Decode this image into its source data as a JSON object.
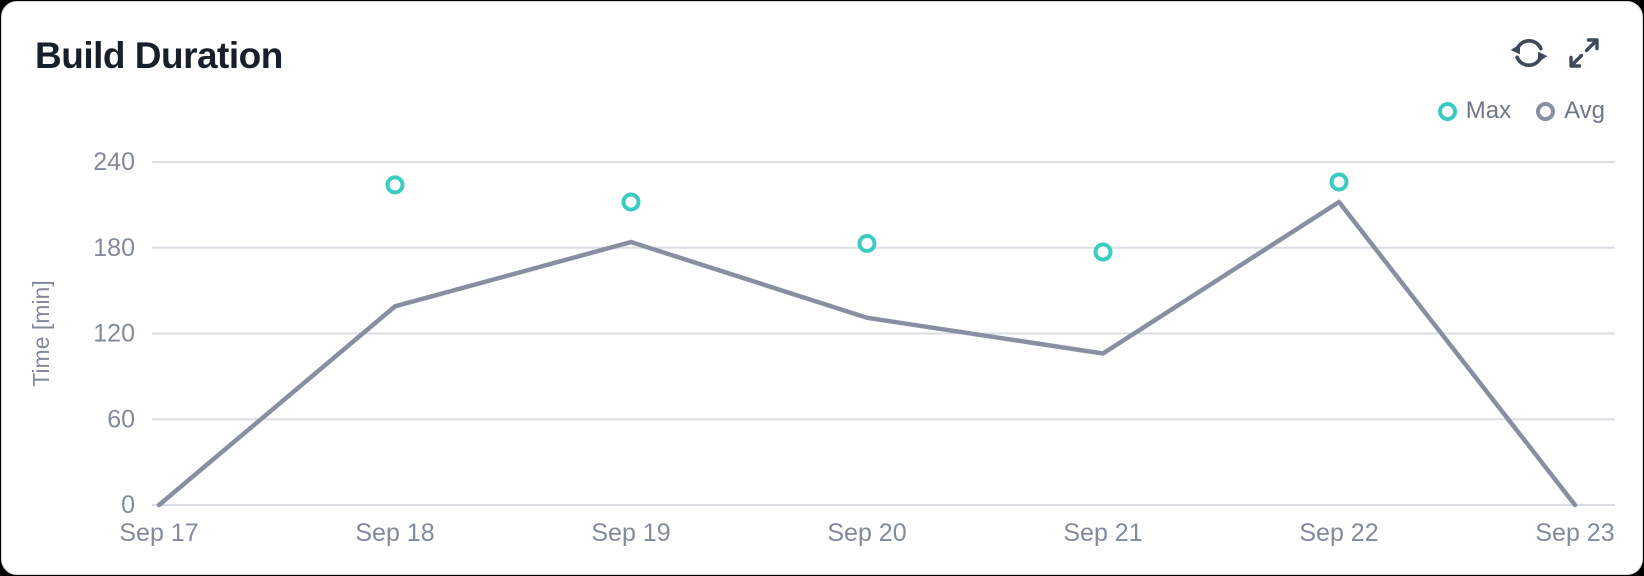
{
  "card": {
    "title": "Build Duration"
  },
  "toolbar": {
    "refresh_icon": "sync-arrows",
    "expand_icon": "diagonal-expand-arrows"
  },
  "legend": [
    {
      "label": "Max",
      "color": "#3bcbc2"
    },
    {
      "label": "Avg",
      "color": "#878fa1"
    }
  ],
  "colors": {
    "title_text": "#171f2b",
    "axis_text": "#828b9c",
    "gridline": "#dadde4",
    "icon": "#3e4a5b",
    "max_accent": "#3bcbc2",
    "avg_accent": "#878fa1",
    "card_background": "#ffffff",
    "card_border": "#d8dbe0"
  },
  "chart_data": {
    "type": "line",
    "title": "Build Duration",
    "categories": [
      "Sep 17",
      "Sep 18",
      "Sep 19",
      "Sep 20",
      "Sep 21",
      "Sep 22",
      "Sep 23"
    ],
    "series": [
      {
        "name": "Max",
        "type": "scatter",
        "color": "#3bcbc2",
        "values": [
          null,
          224,
          212,
          183,
          177,
          226,
          null
        ]
      },
      {
        "name": "Avg",
        "type": "line",
        "color": "#878fa1",
        "values": [
          0,
          139,
          184,
          131,
          106,
          212,
          0
        ]
      }
    ],
    "xlabel": "",
    "ylabel": "Time [min]",
    "ylim": [
      0,
      240
    ],
    "yticks": [
      0,
      60,
      120,
      180,
      240
    ],
    "grid": true,
    "legend_position": "top-right"
  }
}
